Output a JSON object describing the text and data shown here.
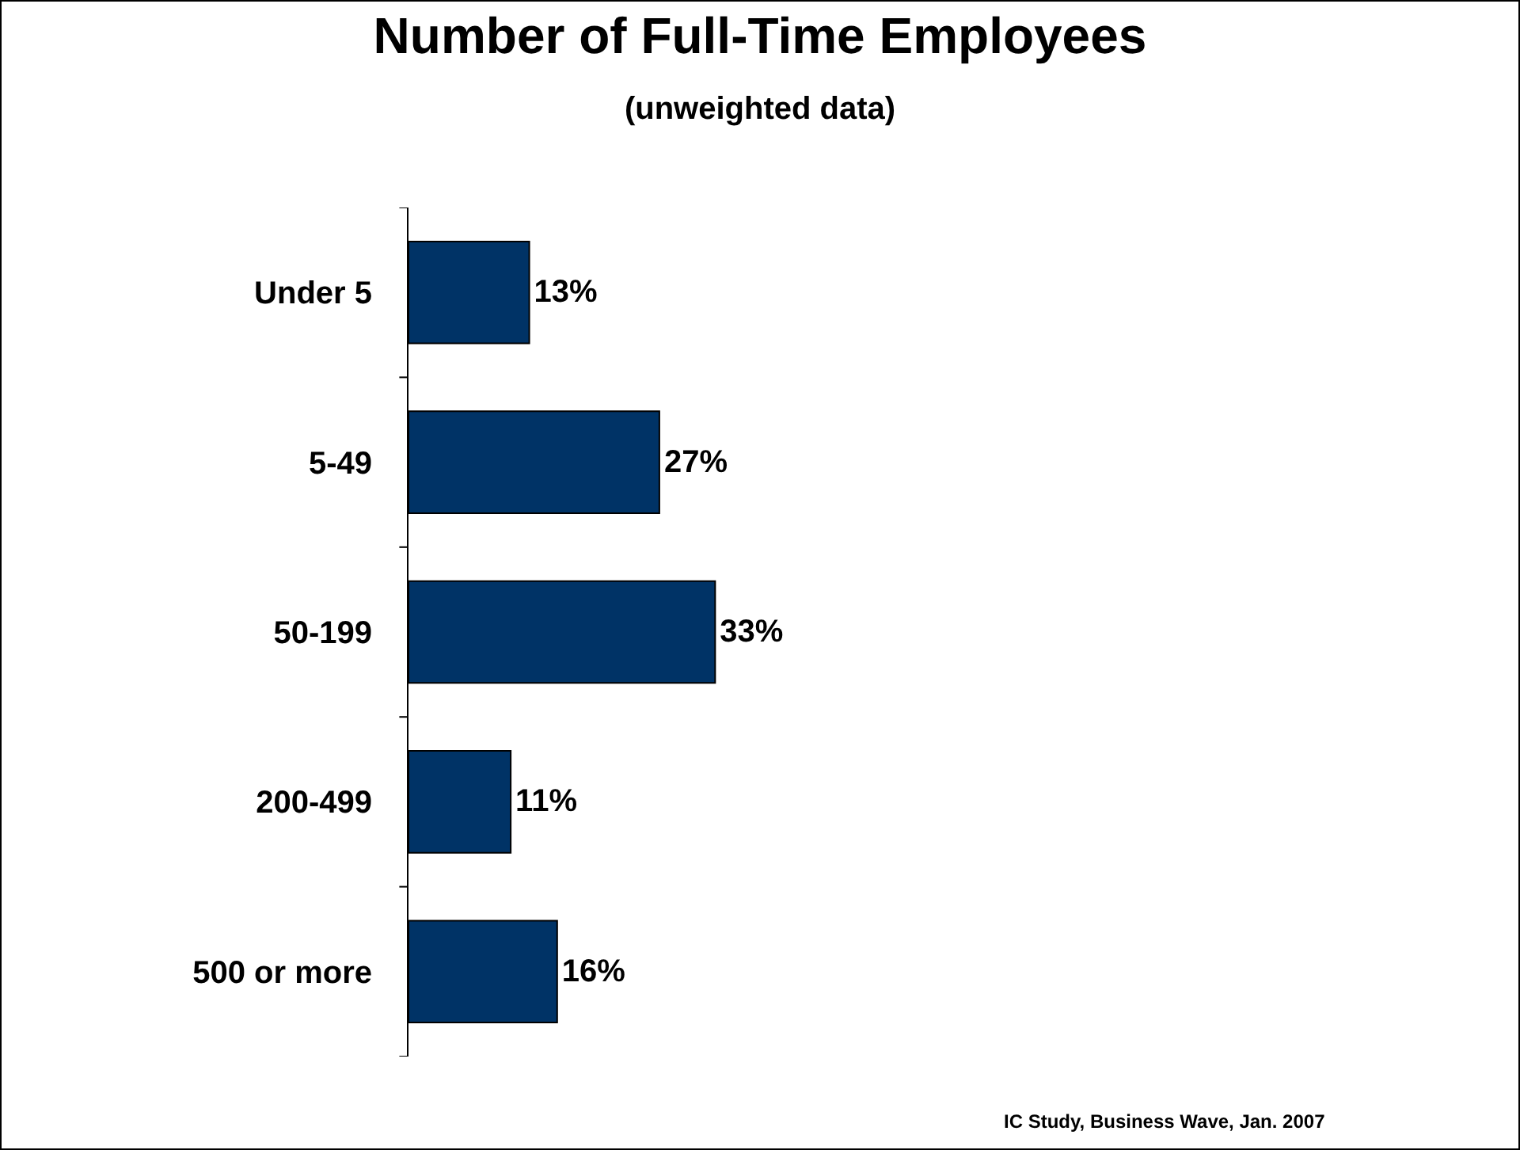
{
  "chart_data": {
    "type": "bar",
    "orientation": "horizontal",
    "title": "Number of Full-Time Employees",
    "subtitle": "(unweighted data)",
    "categories": [
      "Under 5",
      "5-49",
      "50-199",
      "200-499",
      "500 or more"
    ],
    "values": [
      13,
      27,
      33,
      11,
      16
    ],
    "value_labels": [
      "13%",
      "27%",
      "33%",
      "11%",
      "16%"
    ],
    "color": "#003366",
    "grid": false,
    "legend": false,
    "annotations": [
      "IC Study, Business Wave, Jan. 2007"
    ]
  }
}
